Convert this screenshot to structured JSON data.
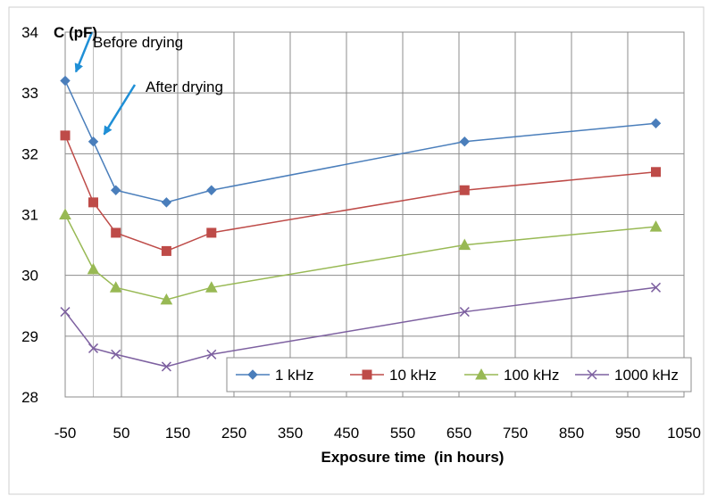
{
  "chart_data": {
    "type": "line",
    "ylabel": "C (pF)",
    "xlabel": "Exposure time  (in hours)",
    "xlim": [
      -50,
      1050
    ],
    "ylim": [
      28,
      34
    ],
    "xticks": [
      -50,
      50,
      150,
      250,
      350,
      450,
      550,
      650,
      750,
      850,
      950,
      1050
    ],
    "yticks": [
      28,
      29,
      30,
      31,
      32,
      33,
      34
    ],
    "grid": true,
    "legend_position": "bottom-right inside plot",
    "x": [
      -50,
      0,
      40,
      130,
      210,
      660,
      1000
    ],
    "series": [
      {
        "name": "1 kHz",
        "color": "#4a7ebb",
        "marker": "diamond",
        "values": [
          33.2,
          32.2,
          31.4,
          31.2,
          31.4,
          32.2,
          32.5
        ]
      },
      {
        "name": "10 kHz",
        "color": "#be4b48",
        "marker": "square",
        "values": [
          32.3,
          31.2,
          30.7,
          30.4,
          30.7,
          31.4,
          31.7
        ]
      },
      {
        "name": "100 kHz",
        "color": "#98b954",
        "marker": "triangle",
        "values": [
          31.0,
          30.1,
          29.8,
          29.6,
          29.8,
          30.5,
          30.8
        ]
      },
      {
        "name": "1000 kHz",
        "color": "#7d60a0",
        "marker": "x",
        "values": [
          29.4,
          28.8,
          28.7,
          28.5,
          28.7,
          29.4,
          29.8
        ]
      }
    ],
    "annotations": [
      {
        "text": "Before drying",
        "x": -50,
        "y": 33.2,
        "arrow_color": "#1f8fd6"
      },
      {
        "text": "After drying",
        "x": 0,
        "y": 32.2,
        "arrow_color": "#1f8fd6"
      }
    ]
  }
}
